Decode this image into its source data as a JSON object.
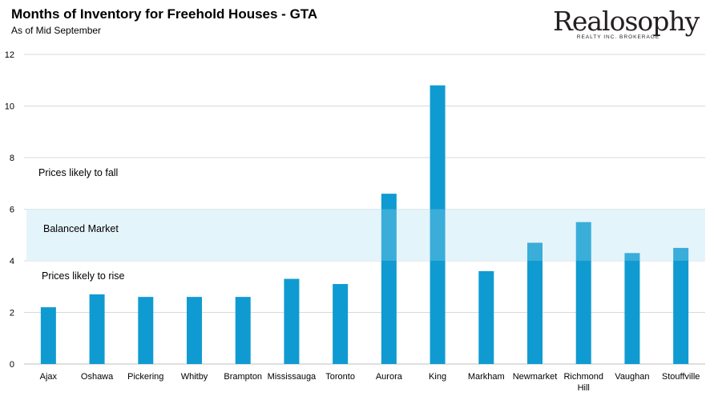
{
  "header": {
    "title": "Months of Inventory for Freehold Houses - GTA",
    "subtitle": "As of Mid September"
  },
  "logo": {
    "name": "Realosophy",
    "tagline": "REALTY INC. BROKERAGE"
  },
  "colors": {
    "bar": "#0f9bd1",
    "band": "#dff2fa",
    "grid": "#d9d9d9"
  },
  "chart_data": {
    "type": "bar",
    "title": "Months of Inventory for Freehold Houses - GTA",
    "subtitle": "As of Mid September",
    "xlabel": "",
    "ylabel": "",
    "ylim": [
      0,
      12
    ],
    "yticks": [
      0,
      2,
      4,
      6,
      8,
      10,
      12
    ],
    "grid": true,
    "categories": [
      "Ajax",
      "Oshawa",
      "Pickering",
      "Whitby",
      "Brampton",
      "Mississauga",
      "Toronto",
      "Aurora",
      "King",
      "Markham",
      "Newmarket",
      "Richmond Hill",
      "Vaughan",
      "Stouffville"
    ],
    "values": [
      2.2,
      2.7,
      2.6,
      2.6,
      2.6,
      3.3,
      3.1,
      6.6,
      10.8,
      3.6,
      4.7,
      5.5,
      4.3,
      4.5
    ],
    "balanced_band": [
      4,
      6
    ],
    "annotations": {
      "above": "Prices likely to fall",
      "band": "Balanced Market",
      "below": "Prices likely to rise"
    }
  }
}
